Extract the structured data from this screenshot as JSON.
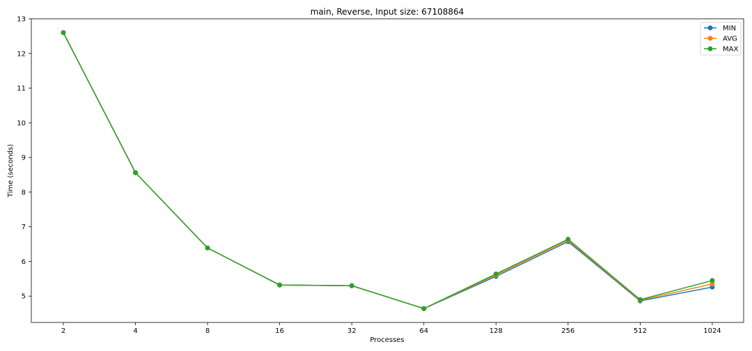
{
  "chart_data": {
    "type": "line",
    "title": "main, Reverse, Input size: 67108864",
    "xlabel": "Processes",
    "ylabel": "Time (seconds)",
    "categories": [
      "2",
      "4",
      "8",
      "16",
      "32",
      "64",
      "128",
      "256",
      "512",
      "1024"
    ],
    "ylim": [
      4.24,
      13.0
    ],
    "yticks": [
      5,
      6,
      7,
      8,
      9,
      10,
      11,
      12,
      13
    ],
    "grid": false,
    "legend_position": "top-right",
    "series": [
      {
        "name": "MIN",
        "color": "#1f77b4",
        "values": [
          12.6,
          8.56,
          6.39,
          5.32,
          5.3,
          4.64,
          5.57,
          6.57,
          4.86,
          5.26
        ]
      },
      {
        "name": "AVG",
        "color": "#ff7f0e",
        "values": [
          12.6,
          8.56,
          6.39,
          5.32,
          5.3,
          4.64,
          5.61,
          6.61,
          4.88,
          5.35
        ]
      },
      {
        "name": "MAX",
        "color": "#2ca02c",
        "values": [
          12.6,
          8.56,
          6.39,
          5.32,
          5.3,
          4.64,
          5.64,
          6.64,
          4.9,
          5.45
        ]
      }
    ]
  }
}
